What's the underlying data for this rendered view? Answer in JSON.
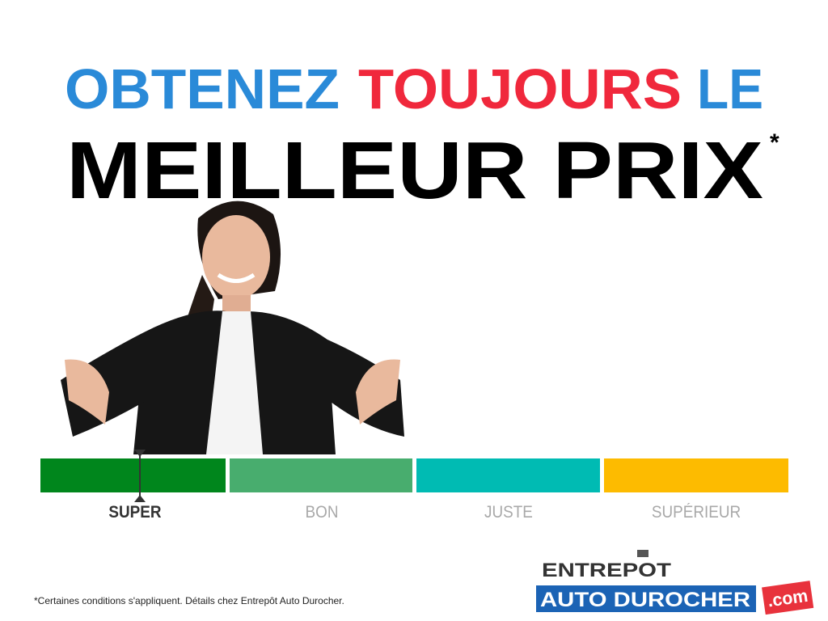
{
  "headline": {
    "word1": "OBTENEZ",
    "word2": "TOUJOURS",
    "word3": "LE",
    "line2": "MEILLEUR PRIX",
    "asterisk": "*"
  },
  "colors": {
    "blue": "#2a8ad8",
    "red": "#f0283c",
    "black": "#000000"
  },
  "price_scale": {
    "segments": [
      {
        "label": "SUPER",
        "color": "#00861c",
        "active": true
      },
      {
        "label": "BON",
        "color": "#48ad6e",
        "active": false
      },
      {
        "label": "JUSTE",
        "color": "#00bbb3",
        "active": false
      },
      {
        "label": "SUPÉRIEUR",
        "color": "#fdbb00",
        "active": false
      }
    ],
    "marker_segment": "SUPER"
  },
  "disclaimer": "*Certaines conditions s'appliquent. Détails chez Entrepôt Auto Durocher.",
  "logo": {
    "line1": "ENTREPOT",
    "line2": "AUTO DUROCHER",
    "suffix": ".com"
  }
}
